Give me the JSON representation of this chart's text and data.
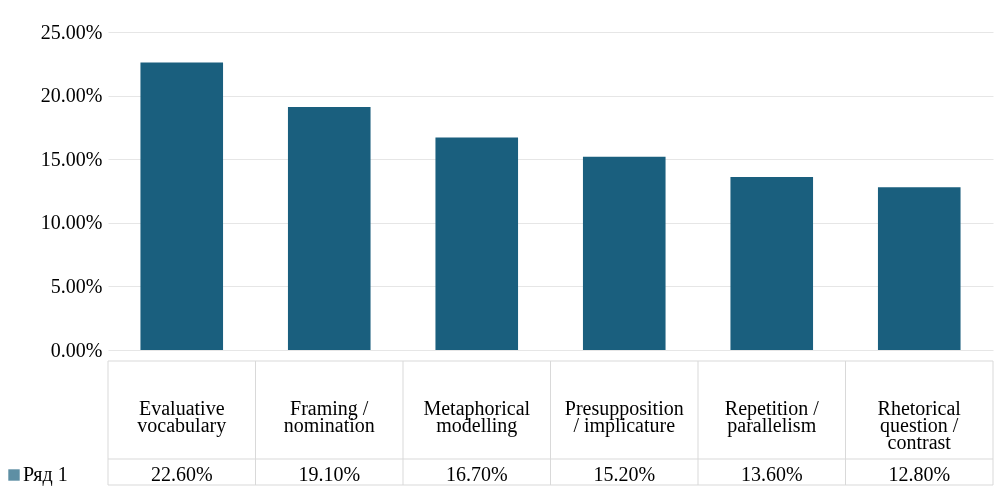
{
  "chart_data": {
    "type": "bar",
    "categories": [
      "Evaluative vocabulary",
      "Framing / nomination",
      "Metaphorical modelling",
      "Presupposition / implicature",
      "Repetition / parallelism",
      "Rhetorical question / contrast"
    ],
    "series": [
      {
        "name": "Ряд 1",
        "color": "#1a5f7e",
        "values": [
          22.6,
          19.1,
          16.7,
          15.2,
          13.6,
          12.8
        ]
      }
    ],
    "value_labels": [
      "22.60%",
      "19.10%",
      "16.70%",
      "15.20%",
      "13.60%",
      "12.80%"
    ],
    "ylim": [
      0,
      25
    ],
    "yticks": [
      {
        "value": 0,
        "label": "0.00%"
      },
      {
        "value": 5,
        "label": "5.00%"
      },
      {
        "value": 10,
        "label": "10.00%"
      },
      {
        "value": 15,
        "label": "15.00%"
      },
      {
        "value": 20,
        "label": "20.00%"
      },
      {
        "value": 25,
        "label": "25.00%"
      }
    ],
    "grid": "y",
    "legend": "bottom"
  }
}
